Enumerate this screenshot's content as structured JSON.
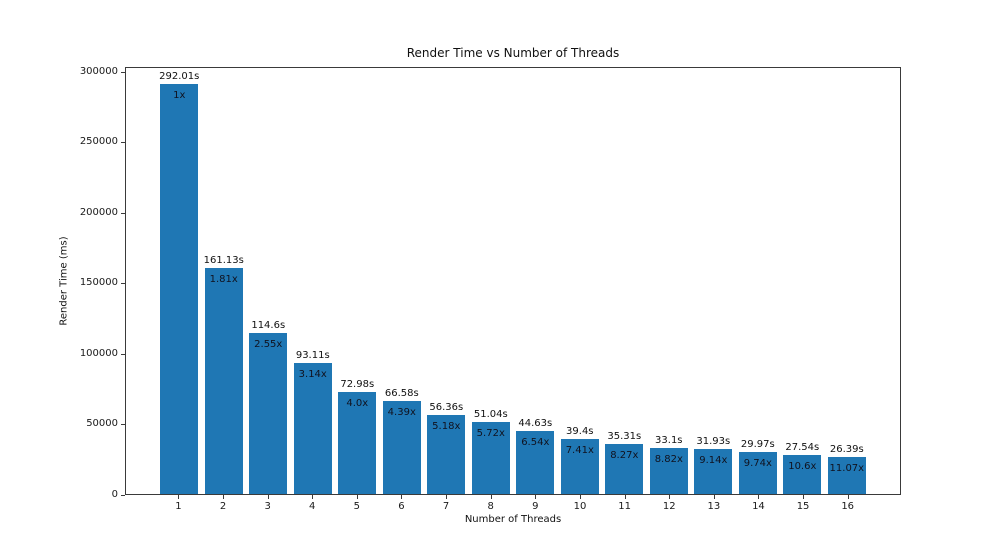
{
  "chart_data": {
    "type": "bar",
    "title": "Render Time vs Number of Threads",
    "xlabel": "Number of Threads",
    "ylabel": "Render Time (ms)",
    "categories": [
      "1",
      "2",
      "3",
      "4",
      "5",
      "6",
      "7",
      "8",
      "9",
      "10",
      "11",
      "12",
      "13",
      "14",
      "15",
      "16"
    ],
    "values": [
      292010,
      161130,
      114600,
      93110,
      72980,
      66580,
      56360,
      51040,
      44630,
      39400,
      35310,
      33100,
      31930,
      29970,
      27540,
      26390
    ],
    "bar_labels": [
      "292.01s",
      "161.13s",
      "114.6s",
      "93.11s",
      "72.98s",
      "66.58s",
      "56.36s",
      "51.04s",
      "44.63s",
      "39.4s",
      "35.31s",
      "33.1s",
      "31.93s",
      "29.97s",
      "27.54s",
      "26.39s"
    ],
    "speedup_labels": [
      "1x",
      "1.81x",
      "2.55x",
      "3.14x",
      "4.0x",
      "4.39x",
      "5.18x",
      "5.72x",
      "6.54x",
      "7.41x",
      "8.27x",
      "8.82x",
      "9.14x",
      "9.74x",
      "10.6x",
      "11.07x"
    ],
    "ytick_labels": [
      "0",
      "50000",
      "100000",
      "150000",
      "200000",
      "250000",
      "300000"
    ],
    "ytick_values": [
      0,
      50000,
      100000,
      150000,
      200000,
      250000,
      300000
    ],
    "ylim": [
      0,
      303500
    ],
    "bar_color": "#1f77b4",
    "grid": false,
    "legend_position": "none"
  }
}
